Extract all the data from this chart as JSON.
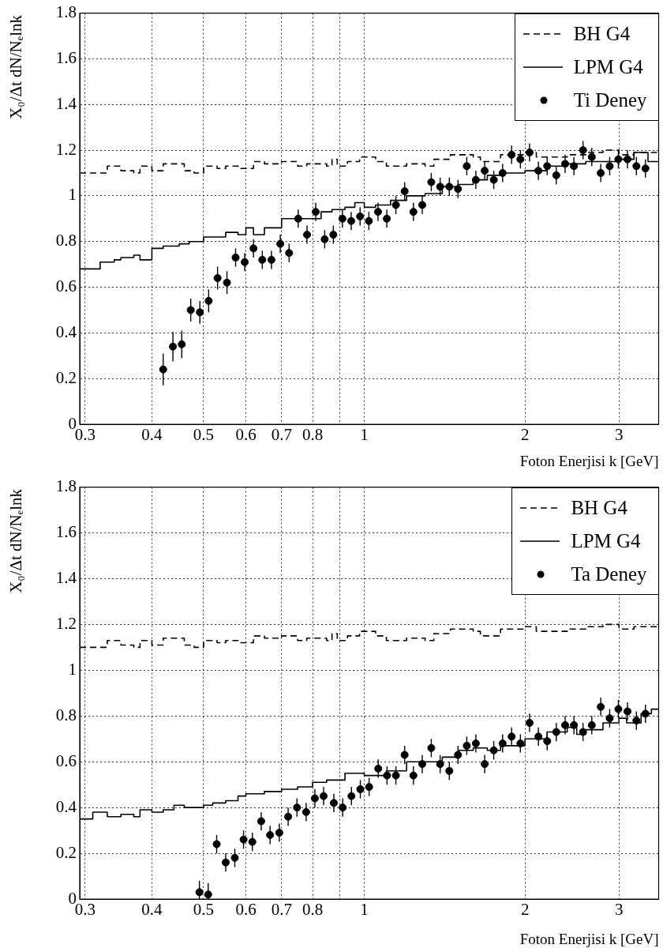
{
  "chart_data": [
    {
      "type": "scatter",
      "xlabel": "Foton Enerjisi k [GeV]",
      "ylabel": "X₀/Δt dN/Nₑlnk",
      "log": "x",
      "grid": true,
      "legend": "top right",
      "xlim": [
        0.293,
        3.56
      ],
      "ylim": [
        0,
        1.8
      ],
      "xticks": [
        0.3,
        0.4,
        0.5,
        0.6,
        0.7,
        0.8,
        {
          "value": 0.9,
          "label": null
        },
        1,
        2,
        3
      ],
      "yticks": [
        0,
        0.2,
        0.4,
        0.6,
        0.8,
        1,
        1.2,
        1.4,
        1.6,
        1.8
      ],
      "series": [
        {
          "name": "BH G4",
          "type": "step",
          "line_style": "dashed",
          "color": "#000000",
          "x": [
            0.293,
            0.33,
            0.35,
            0.37,
            0.38,
            0.4,
            0.42,
            0.46,
            0.48,
            0.5,
            0.53,
            0.55,
            0.58,
            0.62,
            0.65,
            0.7,
            0.75,
            0.78,
            0.85,
            0.87,
            0.89,
            0.93,
            0.98,
            1.05,
            1.1,
            1.2,
            1.3,
            1.35,
            1.45,
            1.6,
            1.65,
            1.8,
            2.0,
            2.1,
            2.4,
            2.6,
            2.8,
            3.0,
            3.2,
            3.56
          ],
          "values": [
            1.1,
            1.13,
            1.11,
            1.1,
            1.13,
            1.11,
            1.14,
            1.11,
            1.1,
            1.13,
            1.12,
            1.13,
            1.12,
            1.15,
            1.14,
            1.15,
            1.13,
            1.14,
            1.13,
            1.16,
            1.13,
            1.15,
            1.17,
            1.15,
            1.13,
            1.14,
            1.13,
            1.16,
            1.18,
            1.17,
            1.15,
            1.18,
            1.19,
            1.17,
            1.18,
            1.19,
            1.2,
            1.18,
            1.19,
            1.2
          ]
        },
        {
          "name": "LPM G4",
          "type": "step",
          "line_style": "solid",
          "color": "#000000",
          "x": [
            0.293,
            0.31,
            0.32,
            0.34,
            0.35,
            0.37,
            0.38,
            0.4,
            0.42,
            0.45,
            0.47,
            0.5,
            0.52,
            0.55,
            0.58,
            0.6,
            0.62,
            0.65,
            0.68,
            0.7,
            0.75,
            0.8,
            0.83,
            0.87,
            0.92,
            0.96,
            1.0,
            1.05,
            1.12,
            1.2,
            1.3,
            1.4,
            1.5,
            1.6,
            1.7,
            1.8,
            2.0,
            2.2,
            2.4,
            2.6,
            2.8,
            3.0,
            3.2,
            3.4,
            3.56
          ],
          "values": [
            0.68,
            0.68,
            0.71,
            0.72,
            0.73,
            0.74,
            0.72,
            0.77,
            0.78,
            0.79,
            0.8,
            0.82,
            0.82,
            0.84,
            0.83,
            0.86,
            0.83,
            0.86,
            0.86,
            0.9,
            0.9,
            0.9,
            0.93,
            0.94,
            0.95,
            0.97,
            0.95,
            0.96,
            0.98,
            1.0,
            1.01,
            1.04,
            1.05,
            1.07,
            1.09,
            1.1,
            1.11,
            1.13,
            1.14,
            1.15,
            1.15,
            1.16,
            1.19,
            1.15,
            1.15
          ]
        },
        {
          "name": "Ti Deney",
          "type": "scatter",
          "marker": "circle",
          "color": "#000000",
          "x": [
            0.42,
            0.438,
            0.455,
            0.473,
            0.492,
            0.511,
            0.531,
            0.553,
            0.574,
            0.597,
            0.62,
            0.644,
            0.67,
            0.696,
            0.723,
            0.752,
            0.781,
            0.811,
            0.843,
            0.875,
            0.91,
            0.945,
            0.982,
            1.02,
            1.061,
            1.102,
            1.146,
            1.19,
            1.236,
            1.284,
            1.335,
            1.387,
            1.443,
            1.498,
            1.556,
            1.618,
            1.681,
            1.748,
            1.816,
            1.888,
            1.961,
            2.04,
            2.119,
            2.201,
            2.289,
            2.378,
            2.47,
            2.569,
            2.668,
            2.773,
            2.882,
            2.992,
            3.112,
            3.234,
            3.363
          ],
          "values": [
            0.24,
            0.34,
            0.35,
            0.5,
            0.49,
            0.54,
            0.64,
            0.62,
            0.73,
            0.71,
            0.77,
            0.72,
            0.72,
            0.79,
            0.75,
            0.9,
            0.83,
            0.93,
            0.81,
            0.83,
            0.9,
            0.89,
            0.91,
            0.89,
            0.93,
            0.9,
            0.96,
            1.02,
            0.93,
            0.96,
            1.06,
            1.04,
            1.04,
            1.03,
            1.13,
            1.07,
            1.11,
            1.07,
            1.1,
            1.18,
            1.16,
            1.19,
            1.11,
            1.13,
            1.09,
            1.14,
            1.13,
            1.2,
            1.17,
            1.1,
            1.13,
            1.16,
            1.16,
            1.13,
            1.12
          ],
          "errors": [
            0.07,
            0.065,
            0.06,
            0.05,
            0.05,
            0.05,
            0.05,
            0.05,
            0.04,
            0.04,
            0.04,
            0.04,
            0.04,
            0.04,
            0.04,
            0.04,
            0.04,
            0.04,
            0.04,
            0.04,
            0.04,
            0.04,
            0.04,
            0.04,
            0.04,
            0.04,
            0.04,
            0.04,
            0.04,
            0.04,
            0.04,
            0.04,
            0.04,
            0.04,
            0.04,
            0.04,
            0.04,
            0.04,
            0.04,
            0.04,
            0.04,
            0.04,
            0.04,
            0.04,
            0.04,
            0.04,
            0.04,
            0.04,
            0.04,
            0.04,
            0.04,
            0.04,
            0.04,
            0.04,
            0.04
          ]
        }
      ]
    },
    {
      "type": "scatter",
      "xlabel": "Foton Enerjisi k [GeV]",
      "ylabel": "X₀/Δt dN/Nₑlnk",
      "log": "x",
      "grid": true,
      "legend": "top right",
      "xlim": [
        0.293,
        3.56
      ],
      "ylim": [
        0,
        1.8
      ],
      "xticks": [
        0.3,
        0.4,
        0.5,
        0.6,
        0.7,
        0.8,
        {
          "value": 0.9,
          "label": null
        },
        1,
        2,
        3
      ],
      "yticks": [
        0,
        0.2,
        0.4,
        0.6,
        0.8,
        1,
        1.2,
        1.4,
        1.6,
        1.8
      ],
      "series": [
        {
          "name": "BH G4",
          "type": "step",
          "line_style": "dashed",
          "color": "#000000",
          "x": [
            0.293,
            0.33,
            0.35,
            0.37,
            0.38,
            0.4,
            0.42,
            0.46,
            0.48,
            0.5,
            0.53,
            0.55,
            0.58,
            0.62,
            0.65,
            0.7,
            0.75,
            0.78,
            0.85,
            0.87,
            0.89,
            0.93,
            0.98,
            1.05,
            1.1,
            1.2,
            1.3,
            1.35,
            1.45,
            1.6,
            1.65,
            1.8,
            2.0,
            2.1,
            2.4,
            2.6,
            2.8,
            3.0,
            3.2,
            3.56
          ],
          "values": [
            1.1,
            1.13,
            1.11,
            1.1,
            1.13,
            1.11,
            1.14,
            1.11,
            1.1,
            1.13,
            1.12,
            1.13,
            1.12,
            1.15,
            1.14,
            1.15,
            1.13,
            1.14,
            1.13,
            1.16,
            1.13,
            1.15,
            1.17,
            1.15,
            1.13,
            1.14,
            1.13,
            1.16,
            1.18,
            1.17,
            1.15,
            1.18,
            1.19,
            1.17,
            1.18,
            1.19,
            1.2,
            1.18,
            1.19,
            1.2
          ]
        },
        {
          "name": "LPM G4",
          "type": "step",
          "line_style": "solid",
          "color": "#000000",
          "x": [
            0.293,
            0.31,
            0.33,
            0.35,
            0.37,
            0.38,
            0.4,
            0.42,
            0.44,
            0.46,
            0.5,
            0.52,
            0.55,
            0.58,
            0.6,
            0.65,
            0.7,
            0.75,
            0.8,
            0.85,
            0.92,
            1.0,
            1.1,
            1.2,
            1.3,
            1.4,
            1.5,
            1.6,
            1.7,
            1.8,
            2.0,
            2.2,
            2.4,
            2.5,
            2.6,
            2.8,
            3.0,
            3.1,
            3.3,
            3.45,
            3.56
          ],
          "values": [
            0.35,
            0.38,
            0.36,
            0.37,
            0.36,
            0.39,
            0.38,
            0.39,
            0.41,
            0.4,
            0.41,
            0.42,
            0.43,
            0.45,
            0.46,
            0.47,
            0.48,
            0.49,
            0.51,
            0.52,
            0.55,
            0.54,
            0.56,
            0.6,
            0.6,
            0.62,
            0.65,
            0.66,
            0.65,
            0.67,
            0.7,
            0.73,
            0.75,
            0.72,
            0.74,
            0.77,
            0.79,
            0.77,
            0.81,
            0.83,
            0.83
          ]
        },
        {
          "name": "Ta Deney",
          "type": "scatter",
          "marker": "circle",
          "color": "#000000",
          "x": [
            0.491,
            0.51,
            0.529,
            0.55,
            0.572,
            0.594,
            0.617,
            0.641,
            0.666,
            0.693,
            0.72,
            0.748,
            0.778,
            0.808,
            0.839,
            0.877,
            0.911,
            0.946,
            0.983,
            1.021,
            1.062,
            1.103,
            1.146,
            1.19,
            1.236,
            1.284,
            1.335,
            1.387,
            1.443,
            1.498,
            1.556,
            1.618,
            1.681,
            1.748,
            1.816,
            1.888,
            1.961,
            2.04,
            2.119,
            2.201,
            2.289,
            2.378,
            2.47,
            2.569,
            2.668,
            2.773,
            2.882,
            2.992,
            3.112,
            3.234,
            3.363
          ],
          "values": [
            0.03,
            0.02,
            0.24,
            0.16,
            0.18,
            0.26,
            0.25,
            0.34,
            0.28,
            0.29,
            0.36,
            0.4,
            0.38,
            0.44,
            0.45,
            0.42,
            0.4,
            0.45,
            0.48,
            0.49,
            0.57,
            0.54,
            0.54,
            0.63,
            0.54,
            0.59,
            0.66,
            0.59,
            0.56,
            0.63,
            0.67,
            0.68,
            0.59,
            0.65,
            0.68,
            0.71,
            0.68,
            0.77,
            0.71,
            0.69,
            0.73,
            0.76,
            0.76,
            0.73,
            0.76,
            0.84,
            0.79,
            0.83,
            0.82,
            0.78,
            0.81
          ],
          "errors": [
            [
              0,
              0.08
            ],
            [
              0,
              0.07
            ],
            0.04,
            0.04,
            0.04,
            0.04,
            0.04,
            0.04,
            0.04,
            0.04,
            0.04,
            0.04,
            0.04,
            0.04,
            0.04,
            0.04,
            0.04,
            0.04,
            0.04,
            0.04,
            0.04,
            0.04,
            0.04,
            0.04,
            0.04,
            0.04,
            0.04,
            0.04,
            0.04,
            0.04,
            0.04,
            0.04,
            0.04,
            0.04,
            0.04,
            0.04,
            0.04,
            0.04,
            0.04,
            0.04,
            0.04,
            0.04,
            0.04,
            0.04,
            0.04,
            0.04,
            0.04,
            0.04,
            0.04,
            0.04,
            0.04
          ]
        }
      ]
    }
  ]
}
